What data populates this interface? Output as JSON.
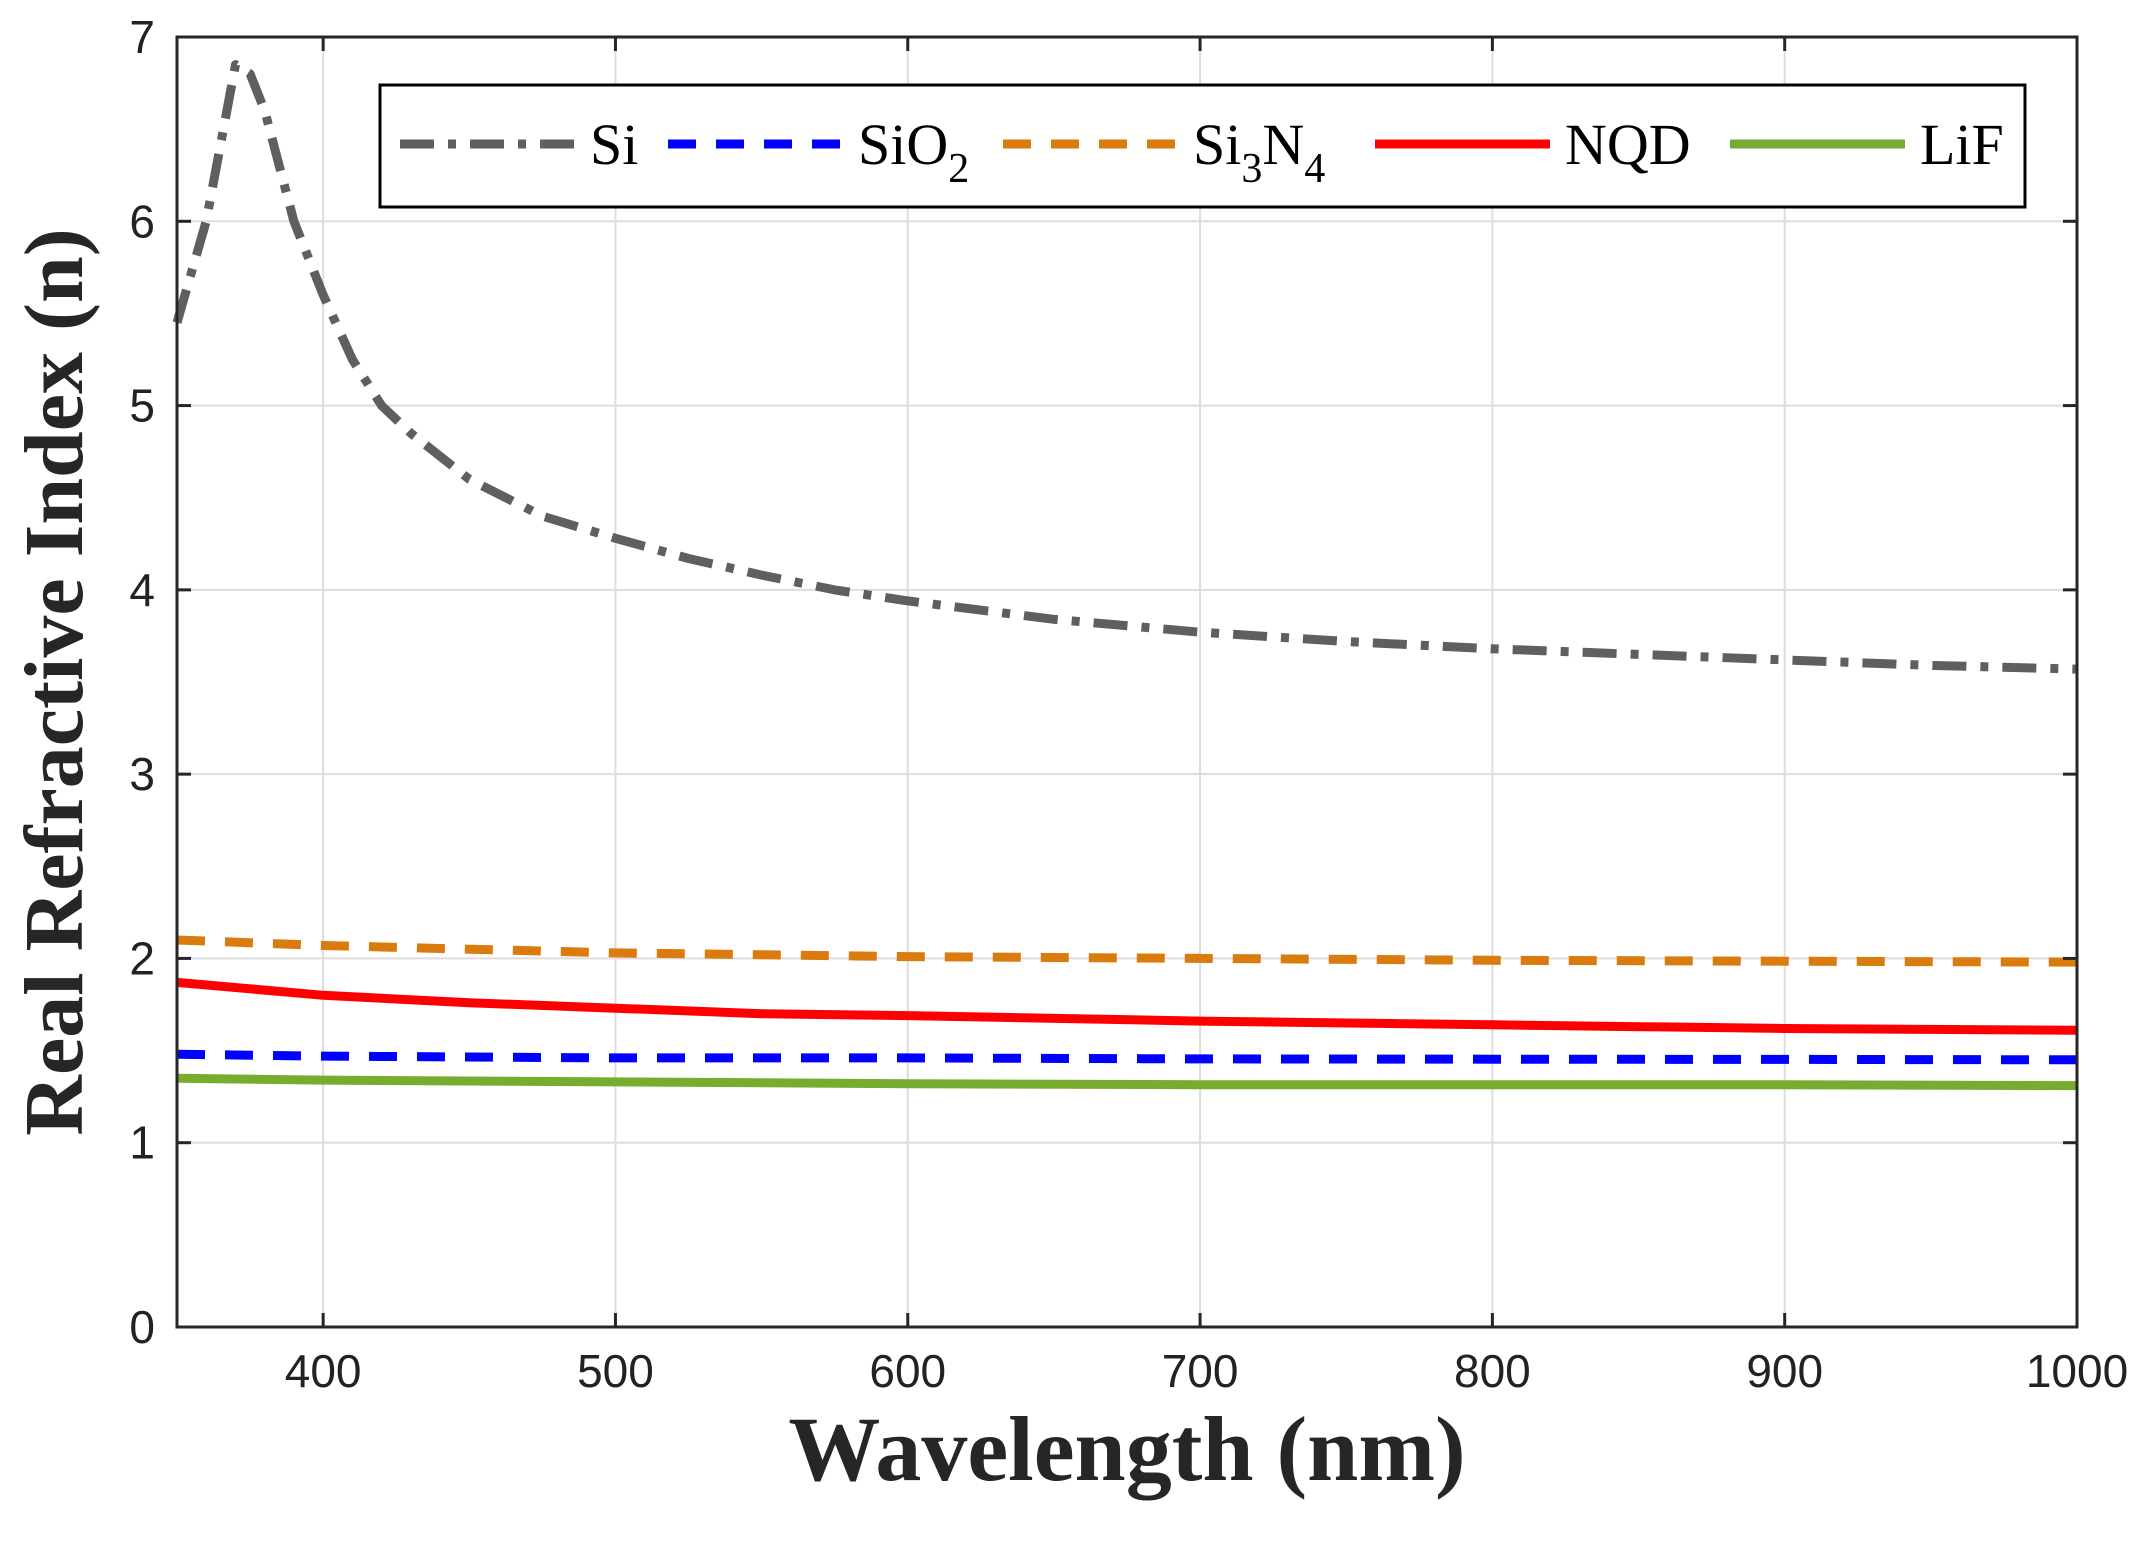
{
  "chart_data": {
    "type": "line",
    "title": "",
    "xlabel": "Wavelength (nm)",
    "ylabel": "Real Refractive Index (n)",
    "xlim": [
      350,
      1000
    ],
    "ylim": [
      0,
      7
    ],
    "xticks": [
      400,
      500,
      600,
      700,
      800,
      900,
      1000
    ],
    "yticks": [
      0,
      1,
      2,
      3,
      4,
      5,
      6,
      7
    ],
    "grid": true,
    "legend_position": "top-center",
    "series": [
      {
        "name": "Si",
        "label_base": "Si",
        "label_sub": [],
        "color": "#5f5f5f",
        "dash": "dashdot",
        "x": [
          350,
          360,
          370,
          375,
          380,
          385,
          390,
          400,
          410,
          420,
          430,
          450,
          475,
          500,
          525,
          550,
          575,
          600,
          650,
          700,
          750,
          800,
          850,
          900,
          950,
          1000
        ],
        "y": [
          5.45,
          6.0,
          6.85,
          6.8,
          6.6,
          6.3,
          6.0,
          5.6,
          5.25,
          5.0,
          4.85,
          4.6,
          4.4,
          4.28,
          4.17,
          4.08,
          4.0,
          3.94,
          3.84,
          3.77,
          3.72,
          3.68,
          3.65,
          3.62,
          3.59,
          3.57
        ]
      },
      {
        "name": "SiO2",
        "label_base": "SiO",
        "label_sub": [
          "2"
        ],
        "color": "#0000ff",
        "dash": "dash",
        "x": [
          350,
          400,
          500,
          600,
          700,
          800,
          900,
          1000
        ],
        "y": [
          1.48,
          1.47,
          1.46,
          1.46,
          1.455,
          1.453,
          1.452,
          1.45
        ]
      },
      {
        "name": "Si3N4",
        "label_base": "Si",
        "label_sub": [
          "3",
          "N",
          "4"
        ],
        "color": "#d97b0d",
        "dash": "dash",
        "x": [
          350,
          400,
          500,
          600,
          700,
          800,
          900,
          1000
        ],
        "y": [
          2.1,
          2.07,
          2.03,
          2.01,
          2.0,
          1.99,
          1.985,
          1.98
        ]
      },
      {
        "name": "NQD",
        "label_base": "NQD",
        "label_sub": [],
        "color": "#ff0000",
        "dash": "solid",
        "x": [
          350,
          400,
          450,
          500,
          550,
          600,
          700,
          800,
          900,
          1000
        ],
        "y": [
          1.87,
          1.8,
          1.76,
          1.73,
          1.7,
          1.69,
          1.66,
          1.64,
          1.62,
          1.61
        ]
      },
      {
        "name": "LiF",
        "label_base": "LiF",
        "label_sub": [],
        "color": "#77ac30",
        "dash": "solid",
        "x": [
          350,
          400,
          500,
          600,
          700,
          800,
          900,
          1000
        ],
        "y": [
          1.35,
          1.34,
          1.33,
          1.32,
          1.315,
          1.315,
          1.315,
          1.31
        ]
      }
    ]
  }
}
